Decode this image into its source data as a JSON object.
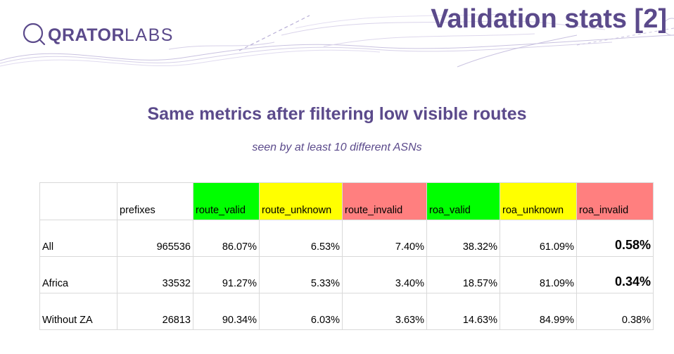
{
  "header": {
    "logo_bold": "QRATOR",
    "logo_light": "LABS",
    "slide_title": "Validation stats [2]",
    "colors": {
      "brand": "#5b4a8b",
      "accent": "#b7aed6"
    }
  },
  "heading": "Same metrics after filtering low visible routes",
  "subheading": "seen by at least 10 different ASNs",
  "table": {
    "columns": [
      "",
      "prefixes",
      "route_valid",
      "route_unknown",
      "route_invalid",
      "roa_valid",
      "roa_unknown",
      "roa_invalid"
    ],
    "column_colors": [
      "",
      "",
      "#00ff00",
      "#ffff00",
      "#ff7f7f",
      "#00ff00",
      "#ffff00",
      "#ff7f7f"
    ],
    "rows": [
      {
        "label": "All",
        "prefixes": "965536",
        "route_valid": "86.07%",
        "route_unknown": "6.53%",
        "route_invalid": "7.40%",
        "roa_valid": "38.32%",
        "roa_unknown": "61.09%",
        "roa_invalid": "0.58%",
        "roa_invalid_emphasis": true
      },
      {
        "label": "Africa",
        "prefixes": "33532",
        "route_valid": "91.27%",
        "route_unknown": "5.33%",
        "route_invalid": "3.40%",
        "roa_valid": "18.57%",
        "roa_unknown": "81.09%",
        "roa_invalid": "0.34%",
        "roa_invalid_emphasis": true
      },
      {
        "label": "Without ZA",
        "prefixes": "26813",
        "route_valid": "90.34%",
        "route_unknown": "6.03%",
        "route_invalid": "3.63%",
        "roa_valid": "14.63%",
        "roa_unknown": "84.99%",
        "roa_invalid": "0.38%",
        "roa_invalid_emphasis": false
      }
    ]
  }
}
